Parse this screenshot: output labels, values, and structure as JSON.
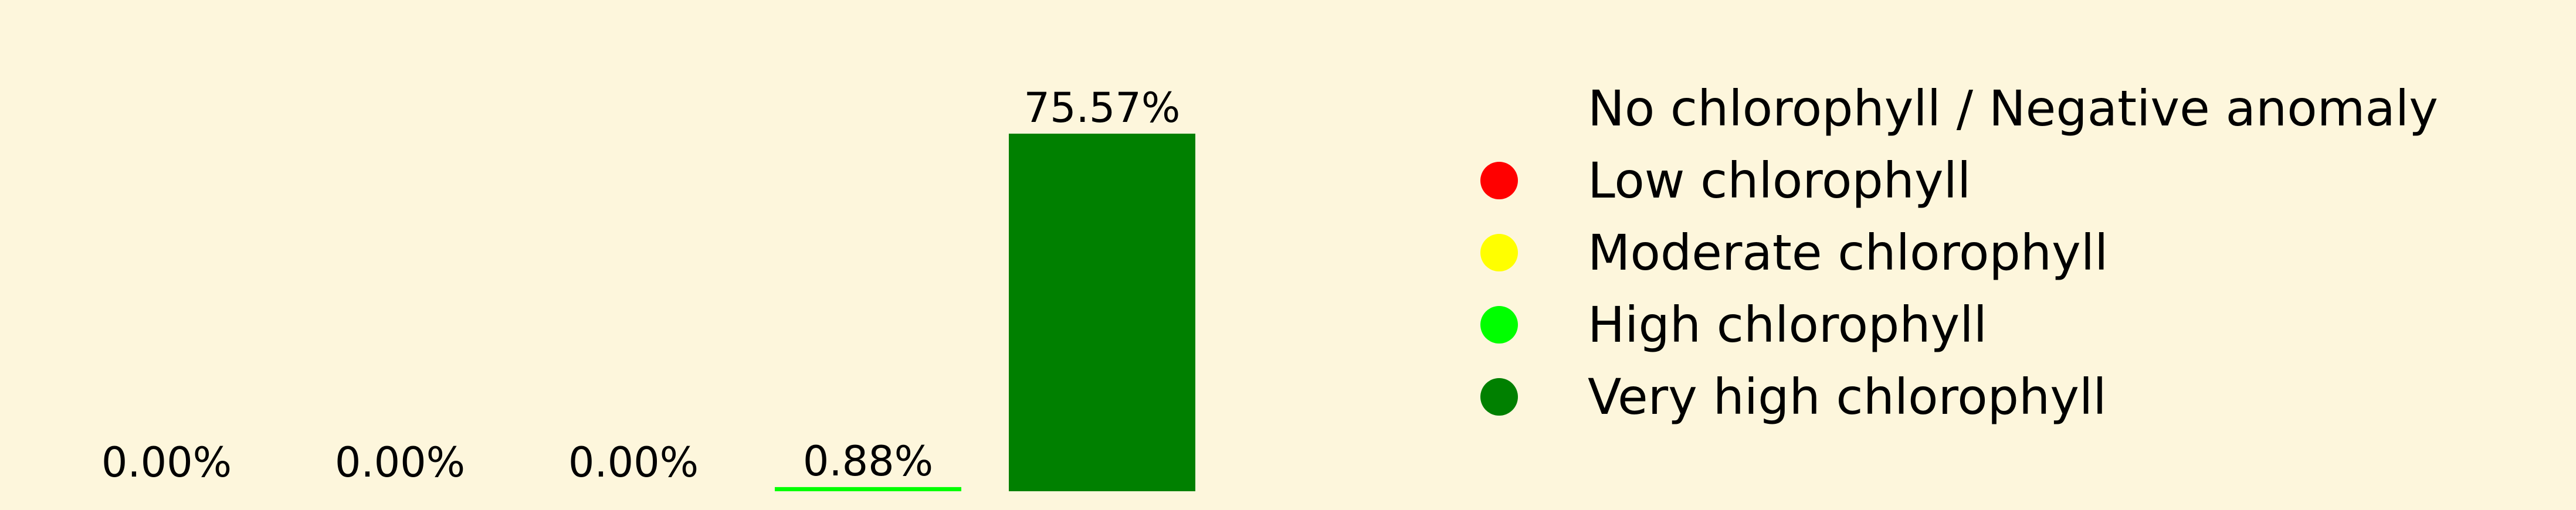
{
  "chart_data": {
    "type": "bar",
    "title": "",
    "xlabel": "",
    "ylabel": "",
    "ylim": [
      0,
      75.57
    ],
    "grid": false,
    "background": "#fdf6dc",
    "categories": [
      "No chlorophyll / Negative anomaly",
      "Low chlorophyll",
      "Moderate chlorophyll",
      "High chlorophyll",
      "Very high chlorophyll"
    ],
    "values": [
      0.0,
      0.0,
      0.0,
      0.88,
      75.57
    ],
    "value_labels": [
      "0.00%",
      "0.00%",
      "0.00%",
      "0.88%",
      "75.57%"
    ],
    "colors": [
      "#fdf6dc",
      "#ff0000",
      "#ffff00",
      "#00ff00",
      "#008000"
    ],
    "legend": {
      "position": "right",
      "entries": [
        {
          "label": "No chlorophyll / Negative anomaly",
          "color": "#fdf6dc"
        },
        {
          "label": "Low chlorophyll",
          "color": "#ff0000"
        },
        {
          "label": "Moderate chlorophyll",
          "color": "#ffff00"
        },
        {
          "label": "High chlorophyll",
          "color": "#00ff00"
        },
        {
          "label": "Very high chlorophyll",
          "color": "#008000"
        }
      ]
    }
  }
}
